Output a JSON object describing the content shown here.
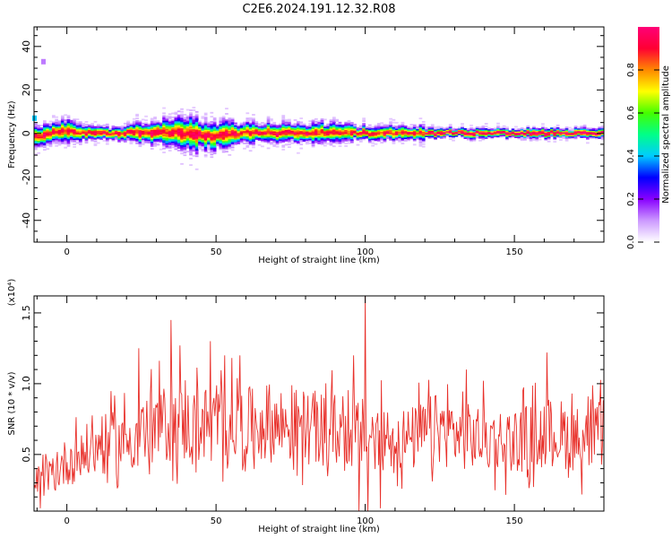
{
  "title": "C2E6.2024.191.12.32.R08",
  "chart_data": [
    {
      "type": "heatmap",
      "xlabel": "Height of straight line (km)",
      "ylabel": "Frequency (Hz)",
      "xlim": [
        -11,
        180
      ],
      "ylim": [
        -50,
        49
      ],
      "xticks": [
        "0",
        "50",
        "100",
        "150"
      ],
      "xtick_values": [
        0,
        50,
        100,
        150
      ],
      "yticks": [
        "40",
        "20",
        "0",
        "-20",
        "-40"
      ],
      "ytick_values": [
        40,
        20,
        0,
        -20,
        -40
      ],
      "colorbar": {
        "label": "Normalized spectral amplitude",
        "ticks": [
          "0.0",
          "0.2",
          "0.4",
          "0.6",
          "0.8"
        ],
        "tick_values": [
          0.0,
          0.2,
          0.4,
          0.6,
          0.8
        ],
        "range": [
          0,
          1
        ],
        "colors": [
          "#ffffff",
          "#cc99ff",
          "#8800ff",
          "#0000ff",
          "#00ccff",
          "#00ff88",
          "#44ff00",
          "#ffff00",
          "#ff8800",
          "#ff0033",
          "#ff0077"
        ]
      },
      "ridge": {
        "x": [
          -11,
          -7,
          -5,
          -2,
          2,
          8,
          15,
          22,
          28,
          35,
          42,
          48,
          55,
          62,
          70,
          78,
          85,
          92,
          98,
          105,
          112,
          119,
          120,
          150,
          180
        ],
        "center_hz": [
          -1.5,
          -0.5,
          0.5,
          1.0,
          0.5,
          0,
          0,
          0.3,
          0,
          0.3,
          -0.5,
          -1.5,
          -0.5,
          0.2,
          0,
          0,
          0.2,
          0.3,
          0,
          0,
          0,
          0,
          0,
          0,
          0
        ],
        "spread_hz": [
          5,
          4,
          4,
          5,
          4,
          3,
          3,
          4,
          5,
          6,
          7,
          6,
          5,
          4,
          4,
          4,
          4,
          4,
          3,
          3,
          3,
          3,
          2,
          2,
          2
        ]
      },
      "outliers": [
        {
          "x": -8,
          "y": 33,
          "v": 0.12
        },
        {
          "x": -11,
          "y": 7,
          "v": 0.4
        }
      ]
    },
    {
      "type": "line",
      "xlabel": "Height of straight line (km)",
      "ylabel": "SNR (10 * v/v)",
      "yscale_label": "(x10⁴)",
      "xlim": [
        -11,
        180
      ],
      "ylim": [
        0.1,
        1.62
      ],
      "xticks": [
        "0",
        "50",
        "100",
        "150"
      ],
      "xtick_values": [
        0,
        50,
        100,
        150
      ],
      "yticks": [
        "0.5",
        "1.0",
        "1.5"
      ],
      "ytick_values": [
        0.5,
        1.0,
        1.5
      ],
      "color": "#e8302a",
      "envelope": {
        "x": [
          -11,
          -5,
          0,
          5,
          10,
          15,
          20,
          25,
          30,
          35,
          40,
          45,
          50,
          55,
          60,
          65,
          70,
          75,
          80,
          85,
          90,
          95,
          100,
          105,
          110,
          115,
          120,
          125,
          130,
          135,
          140,
          145,
          150,
          155,
          160,
          165,
          170,
          175,
          180
        ],
        "y": [
          0.3,
          0.35,
          0.45,
          0.5,
          0.55,
          0.58,
          0.6,
          0.65,
          0.7,
          0.72,
          0.7,
          0.72,
          0.7,
          0.72,
          0.7,
          0.72,
          0.72,
          0.7,
          0.7,
          0.68,
          0.68,
          0.65,
          0.65,
          0.62,
          0.62,
          0.6,
          0.65,
          0.68,
          0.65,
          0.62,
          0.62,
          0.6,
          0.6,
          0.62,
          0.65,
          0.65,
          0.62,
          0.6,
          0.65
        ]
      },
      "peaks": [
        {
          "x": 35,
          "y": 1.45
        },
        {
          "x": 24,
          "y": 1.25
        },
        {
          "x": 38,
          "y": 1.27
        },
        {
          "x": 48,
          "y": 1.3
        },
        {
          "x": 53,
          "y": 1.2
        },
        {
          "x": 58,
          "y": 1.2
        },
        {
          "x": 96,
          "y": 1.2
        },
        {
          "x": 100,
          "y": 1.62
        },
        {
          "x": 134,
          "y": 1.1
        },
        {
          "x": 161,
          "y": 1.22
        },
        {
          "x": 98,
          "y": 0.1
        },
        {
          "x": 101,
          "y": 0.1
        },
        {
          "x": 105,
          "y": 0.12
        },
        {
          "x": -9,
          "y": 0.12
        }
      ]
    }
  ]
}
